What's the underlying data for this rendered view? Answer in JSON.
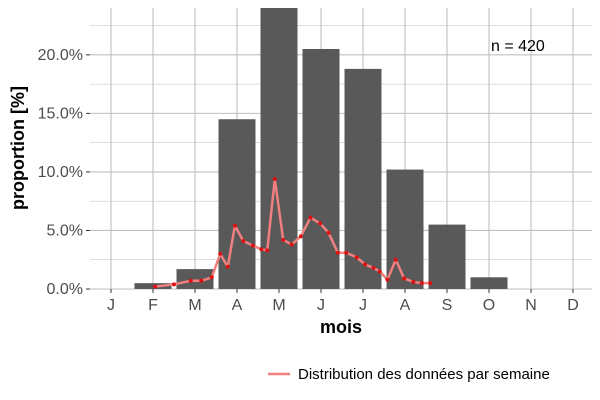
{
  "chart_data": {
    "type": "bar",
    "xlabel": "mois",
    "ylabel": "proportion [%]",
    "categories": [
      "J",
      "F",
      "M",
      "A",
      "M",
      "J",
      "J",
      "A",
      "S",
      "O",
      "N",
      "D"
    ],
    "y_ticks": [
      "0.0%",
      "5.0%",
      "10.0%",
      "15.0%",
      "20.0%"
    ],
    "ylim": [
      0,
      24
    ],
    "grid": true,
    "annotation": "n = 420",
    "colors": {
      "bar": "#595959",
      "line": "#f08080",
      "point": "#dd1111",
      "grid": "#bfbfbf"
    },
    "series": [
      {
        "type": "bar",
        "values": [
          0,
          0.5,
          1.7,
          14.5,
          24.2,
          20.5,
          18.8,
          10.2,
          5.5,
          1.0,
          0,
          0
        ]
      },
      {
        "type": "line",
        "name": "Distribution des données par semaine",
        "points": [
          [
            1.05,
            0.2
          ],
          [
            1.5,
            0.4
          ],
          [
            1.9,
            0.7
          ],
          [
            2.15,
            0.7
          ],
          [
            2.4,
            1.0
          ],
          [
            2.6,
            3.0
          ],
          [
            2.78,
            1.9
          ],
          [
            2.95,
            5.4
          ],
          [
            3.15,
            4.1
          ],
          [
            3.38,
            3.7
          ],
          [
            3.58,
            3.4
          ],
          [
            3.72,
            3.3
          ],
          [
            3.9,
            9.4
          ],
          [
            4.1,
            4.2
          ],
          [
            4.3,
            3.8
          ],
          [
            4.52,
            4.5
          ],
          [
            4.75,
            6.1
          ],
          [
            4.98,
            5.6
          ],
          [
            5.18,
            4.8
          ],
          [
            5.4,
            3.1
          ],
          [
            5.6,
            3.1
          ],
          [
            5.85,
            2.7
          ],
          [
            6.05,
            2.1
          ],
          [
            6.25,
            1.8
          ],
          [
            6.4,
            1.5
          ],
          [
            6.58,
            0.8
          ],
          [
            6.78,
            2.5
          ],
          [
            6.98,
            0.9
          ],
          [
            7.2,
            0.6
          ],
          [
            7.4,
            0.5
          ],
          [
            7.6,
            0.5
          ]
        ]
      }
    ],
    "legend": {
      "position": "bottom-right"
    }
  }
}
